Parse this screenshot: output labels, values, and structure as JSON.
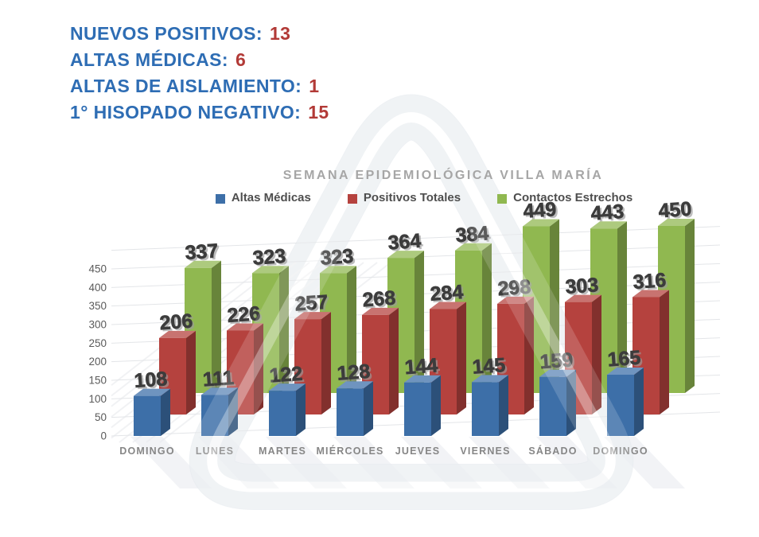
{
  "page": {
    "background": "#ffffff"
  },
  "stats": {
    "label_color": "#2e6db4",
    "value_color": "#b23a37",
    "items": [
      {
        "label": "NUEVOS POSITIVOS:",
        "value": "13"
      },
      {
        "label": "ALTAS MÉDICAS:",
        "value": "6"
      },
      {
        "label": "ALTAS DE AISLAMIENTO:",
        "value": "1"
      },
      {
        "label": "1° HISOPADO NEGATIVO:",
        "value": "15"
      }
    ]
  },
  "chart_data": {
    "type": "bar",
    "style": "3d-columns",
    "title": "SEMANA EPIDEMIOLÓGICA VILLA MARÍA",
    "title_color": "#a6a6a6",
    "legend_position": "top",
    "grid": true,
    "categories": [
      "DOMINGO",
      "LUNES",
      "MARTES",
      "MIÉRCOLES",
      "JUEVES",
      "VIERNES",
      "SÁBADO",
      "DOMINGO"
    ],
    "series": [
      {
        "name": "Altas Médicas",
        "color": "#3d6fa8",
        "values": [
          108,
          111,
          122,
          128,
          144,
          145,
          159,
          165
        ]
      },
      {
        "name": "Positivos Totales",
        "color": "#b5423e",
        "values": [
          206,
          226,
          257,
          268,
          284,
          298,
          303,
          316
        ]
      },
      {
        "name": "Contactos Estrechos",
        "color": "#90b850",
        "values": [
          337,
          323,
          323,
          364,
          384,
          449,
          443,
          450
        ]
      }
    ],
    "ylim": [
      0,
      450
    ],
    "y_tick_step": 50,
    "y_tick_labels": [
      "0",
      "50",
      "100",
      "150",
      "200",
      "250",
      "300",
      "350",
      "400",
      "450"
    ],
    "value_label_color": "#3c3c3c",
    "watermark": "rounded-triangle-logo"
  }
}
